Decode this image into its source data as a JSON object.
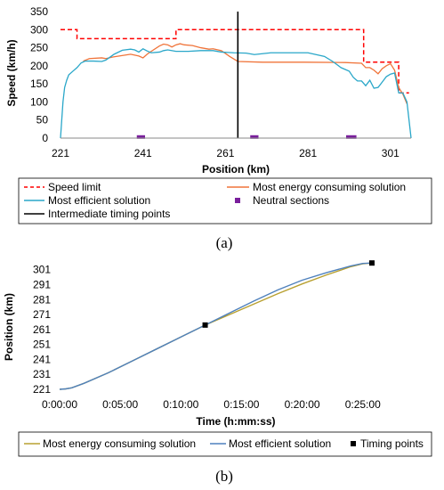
{
  "chart_data": [
    {
      "type": "line",
      "panel_label": "(a)",
      "xlabel": "Position (km)",
      "ylabel": "Speed (km/h)",
      "xlim": [
        221,
        306
      ],
      "ylim": [
        0,
        350
      ],
      "x_ticks": [
        "221",
        "241",
        "261",
        "281",
        "301"
      ],
      "y_ticks": [
        "0",
        "50",
        "100",
        "150",
        "200",
        "250",
        "300",
        "350"
      ],
      "grid": false,
      "legend_position": "bottom",
      "series": [
        {
          "name": "Speed limit",
          "style": "dashed",
          "color": "#ff0000",
          "x": [
            221,
            225,
            225,
            249,
            249,
            294.5,
            294.5,
            303,
            303,
            305.5
          ],
          "y": [
            300,
            300,
            275,
            275,
            300,
            300,
            210,
            210,
            125,
            125
          ]
        },
        {
          "name": "Most energy consuming solution",
          "style": "solid",
          "color": "#f0743a",
          "x": [
            226.5,
            228,
            231,
            232,
            234,
            238,
            240,
            241,
            242,
            243,
            245,
            246,
            247,
            248,
            249,
            250,
            251,
            253,
            255,
            257,
            258,
            260,
            262,
            264,
            270,
            280,
            290,
            294,
            295,
            296,
            297,
            298,
            299,
            300,
            301,
            302,
            303,
            304,
            305
          ],
          "y": [
            213,
            220,
            222,
            220,
            225,
            232,
            227,
            222,
            232,
            240,
            255,
            260,
            258,
            252,
            258,
            261,
            258,
            256,
            250,
            246,
            247,
            242,
            226,
            212,
            210,
            210,
            209,
            207,
            195,
            195,
            188,
            178,
            192,
            200,
            206,
            188,
            140,
            122,
            95
          ]
        },
        {
          "name": "Most efficient solution",
          "style": "solid",
          "color": "#2aa7c9",
          "x": [
            221,
            221.3,
            221.6,
            222,
            222.5,
            223,
            224,
            225,
            226,
            227,
            229,
            231,
            232,
            234,
            236,
            238,
            239,
            240,
            241,
            242,
            243,
            245,
            246,
            247,
            249,
            252,
            255,
            258,
            260,
            263,
            266,
            268,
            272,
            278,
            281,
            285,
            287,
            289,
            291,
            292,
            293,
            294,
            295,
            296,
            297,
            298,
            299,
            300,
            301,
            302,
            303,
            304,
            305,
            306
          ],
          "y": [
            0,
            50,
            100,
            140,
            160,
            175,
            185,
            195,
            208,
            213,
            213,
            212,
            216,
            232,
            243,
            246,
            244,
            238,
            247,
            241,
            236,
            238,
            242,
            244,
            240,
            240,
            242,
            242,
            238,
            236,
            235,
            231,
            236,
            236,
            236,
            226,
            212,
            195,
            185,
            168,
            158,
            158,
            145,
            160,
            138,
            140,
            155,
            170,
            177,
            180,
            125,
            125,
            100,
            0
          ]
        },
        {
          "name": "Intermediate timing points",
          "style": "solid",
          "color": "#000000",
          "x": [
            264,
            264
          ],
          "y": [
            0,
            350
          ]
        },
        {
          "name": "Neutral sections",
          "style": "marker",
          "color": "#7a1f9c",
          "x": [
            240.5,
            268,
            291.5
          ],
          "y": [
            3,
            3,
            3
          ],
          "width_km": [
            2,
            2,
            2.5
          ]
        }
      ]
    },
    {
      "type": "line",
      "panel_label": "(b)",
      "xlabel": "Time (h:mm:ss)",
      "ylabel": "Position (km)",
      "xlim_s": [
        0,
        1620
      ],
      "ylim": [
        221,
        308
      ],
      "x_ticks": [
        "0:00:00",
        "0:05:00",
        "0:10:00",
        "0:15:00",
        "0:20:00",
        "0:25:00"
      ],
      "y_ticks": [
        "221",
        "231",
        "241",
        "251",
        "261",
        "271",
        "281",
        "291",
        "301"
      ],
      "grid": false,
      "legend_position": "bottom",
      "series": [
        {
          "name": "Most energy consuming solution",
          "style": "solid",
          "color": "#b8a030",
          "t_s": [
            0,
            30,
            60,
            120,
            240,
            360,
            480,
            600,
            720,
            840,
            960,
            1080,
            1200,
            1320,
            1440,
            1500,
            1545
          ],
          "y": [
            221,
            221.3,
            222,
            225,
            232,
            240,
            248,
            256,
            264,
            271,
            278,
            285,
            291.5,
            297.5,
            303,
            305,
            305.5
          ]
        },
        {
          "name": "Most efficient solution",
          "style": "solid",
          "color": "#4f81bd",
          "t_s": [
            0,
            30,
            60,
            120,
            240,
            360,
            480,
            600,
            720,
            840,
            960,
            1080,
            1200,
            1320,
            1440,
            1500,
            1545
          ],
          "y": [
            221,
            221.3,
            222,
            225,
            232,
            240,
            248,
            256,
            264,
            272,
            280,
            287.5,
            294,
            299,
            303.5,
            305.2,
            305.5
          ]
        },
        {
          "name": "Timing points",
          "style": "marker",
          "color": "#000000",
          "t_s": [
            720,
            1545
          ],
          "y": [
            264,
            305.5
          ]
        }
      ]
    }
  ]
}
